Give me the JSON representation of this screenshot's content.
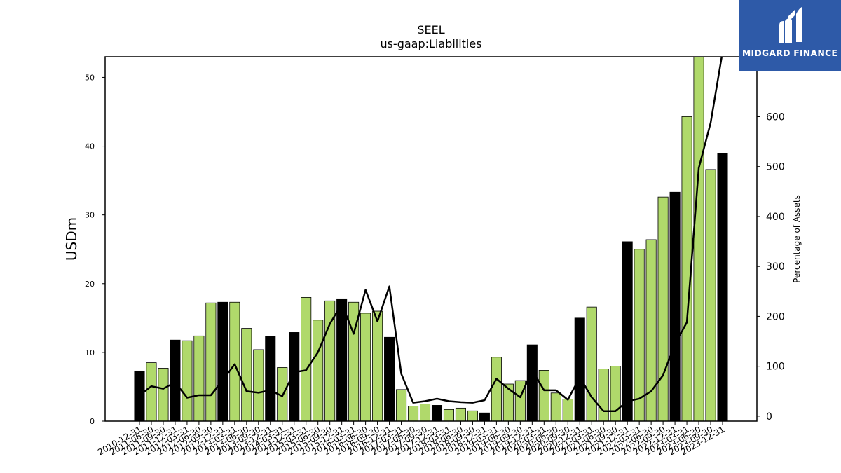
{
  "chart_data": {
    "type": "bar",
    "title": "SEEL",
    "subtitle": "us-gaap:Liabilities",
    "ylabel": "USDm",
    "y2label": "Percentage of Assets",
    "ylim": [
      0,
      53
    ],
    "y2lim": [
      -10,
      720
    ],
    "yticks": [
      0,
      10,
      20,
      30,
      40,
      50
    ],
    "y2ticks": [
      0,
      100,
      200,
      300,
      400,
      500,
      600
    ],
    "categories": [
      "2010-12-31",
      "2011-06-30",
      "2011-09-30",
      "2011-12-31",
      "2012-03-31",
      "2012-06-30",
      "2012-09-30",
      "2012-12-31",
      "2013-03-31",
      "2013-06-30",
      "2013-09-30",
      "2013-12-31",
      "2014-03-31",
      "2014-12-31",
      "2015-03-31",
      "2015-06-30",
      "2015-09-30",
      "2015-12-31",
      "2016-03-31",
      "2016-06-30",
      "2016-09-30",
      "2016-12-31",
      "2017-03-31",
      "2017-06-30",
      "2017-09-30",
      "2017-12-31",
      "2018-03-31",
      "2018-06-30",
      "2018-09-30",
      "2018-12-31",
      "2019-03-31",
      "2019-06-30",
      "2019-09-30",
      "2019-12-31",
      "2020-03-31",
      "2020-06-30",
      "2020-09-30",
      "2020-12-31",
      "2021-03-31",
      "2021-06-30",
      "2021-09-30",
      "2021-12-31",
      "2022-03-31",
      "2022-06-30",
      "2022-09-30",
      "2022-12-31",
      "2023-03-31",
      "2023-06-30",
      "2023-09-30",
      "2023-12-31"
    ],
    "series": [
      {
        "kind": "bar",
        "values": [
          7.3,
          8.5,
          7.7,
          11.8,
          11.7,
          12.4,
          17.2,
          17.3,
          17.3,
          13.5,
          10.4,
          12.3,
          7.8,
          12.9,
          18.0,
          14.7,
          17.5,
          17.8,
          17.3,
          15.7,
          16.0,
          12.2,
          4.6,
          2.2,
          2.5,
          2.3,
          1.7,
          1.9,
          1.5,
          1.2,
          9.3,
          5.4,
          5.9,
          11.1,
          7.4,
          4.1,
          3.2,
          15.0,
          16.6,
          7.6,
          8.0,
          26.1,
          25.0,
          26.4,
          32.6,
          33.3,
          44.3,
          53.0,
          36.6,
          38.9
        ],
        "year_end": [
          true,
          false,
          false,
          true,
          false,
          false,
          false,
          true,
          false,
          false,
          false,
          true,
          false,
          true,
          false,
          false,
          false,
          true,
          false,
          false,
          false,
          true,
          false,
          false,
          false,
          true,
          false,
          false,
          false,
          true,
          false,
          false,
          false,
          true,
          false,
          false,
          false,
          true,
          false,
          false,
          false,
          true,
          false,
          false,
          false,
          true,
          false,
          false,
          false,
          true
        ]
      },
      {
        "kind": "line",
        "axis": "right",
        "values": [
          42,
          60,
          55,
          68,
          37,
          42,
          42,
          72,
          104,
          50,
          47,
          52,
          40,
          88,
          92,
          128,
          185,
          225,
          165,
          253,
          190,
          260,
          85,
          27,
          30,
          35,
          30,
          28,
          27,
          32,
          75,
          55,
          38,
          92,
          52,
          52,
          33,
          78,
          38,
          10,
          10,
          30,
          35,
          50,
          82,
          145,
          188,
          497,
          588,
          730
        ]
      }
    ],
    "colors": {
      "bar": "#b0d96b",
      "bar_year_end": "#000000",
      "line": "#000000"
    },
    "grid": false,
    "legend": "none"
  },
  "logo": {
    "text": "MIDGARD FINANCE",
    "icon": "midgard-logo-icon",
    "background": "#2e5aa8"
  }
}
